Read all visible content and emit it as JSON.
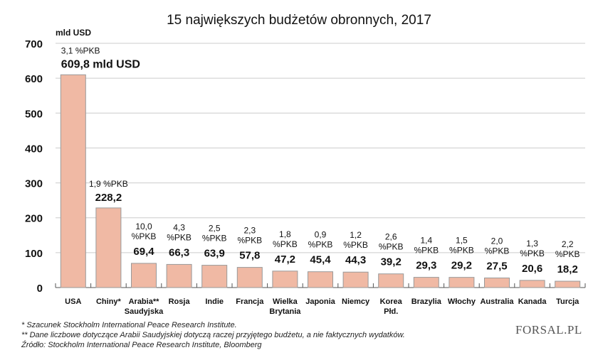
{
  "chart_data": {
    "type": "bar",
    "title": "15 największych budżetów obronnych, 2017",
    "ylabel": "mld USD",
    "ylim": [
      0,
      700
    ],
    "yticks": [
      0,
      100,
      200,
      300,
      400,
      500,
      600,
      700
    ],
    "grid": true,
    "categories": [
      "USA",
      "Chiny*",
      "Arabia** Saudyjska",
      "Rosja",
      "Indie",
      "Francja",
      "Wielka Brytania",
      "Japonia",
      "Niemcy",
      "Korea Płd.",
      "Brazylia",
      "Włochy",
      "Australia",
      "Kanada",
      "Turcja"
    ],
    "values": [
      609.8,
      228.2,
      69.4,
      66.3,
      63.9,
      57.8,
      47.2,
      45.4,
      44.3,
      39.2,
      29.3,
      29.2,
      27.5,
      20.6,
      18.2
    ],
    "value_labels": [
      "609,8 mld USD",
      "228,2",
      "69,4",
      "66,3",
      "63,9",
      "57,8",
      "47,2",
      "45,4",
      "44,3",
      "39,2",
      "29,3",
      "29,2",
      "27,5",
      "20,6",
      "18,2"
    ],
    "gdp_labels": [
      "3,1 %PKB",
      "1,9 %PKB",
      "10,0 %PKB",
      "4,3 %PKB",
      "2,5 %PKB",
      "2,3 %PKB",
      "1,8 %PKB",
      "0,9 %PKB",
      "1,2 %PKB",
      "2,6 %PKB",
      "1,4 %PKB",
      "1,5 %PKB",
      "2,0 %PKB",
      "1,3 %PKB",
      "2,2 %PKB"
    ],
    "bar_color": "#f0b9a4",
    "bar_border": "#999999",
    "grid_color": "#cccccc"
  },
  "footnotes": [
    "* Szacunek Stockholm International Peace Research Institute.",
    "** Dane liczbowe dotyczące Arabii Saudyjskiej dotyczą raczej przyjętego budżetu, a nie faktycznych wydatków.",
    "Źródło: Stockholm International Peace Research Institute, Bloomberg"
  ],
  "logo": "FORSAL.PL"
}
